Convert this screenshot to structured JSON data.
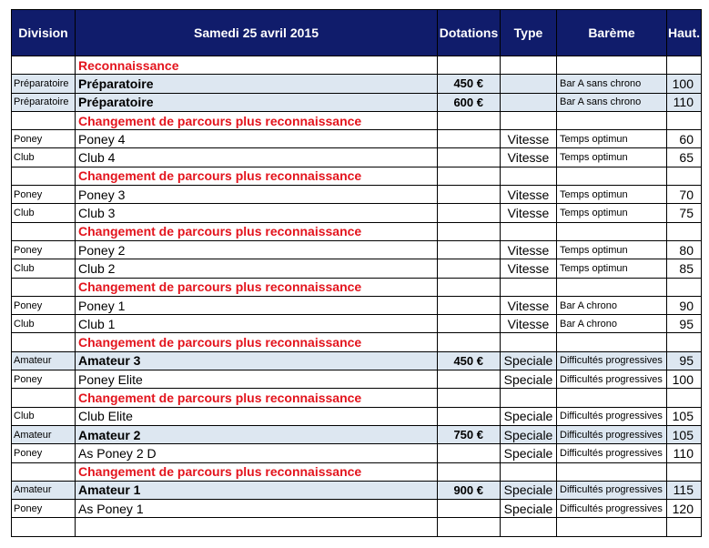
{
  "table": {
    "header": [
      "Division",
      "Samedi 25 avril 2015",
      "Dotations",
      "Type",
      "Barème",
      "Haut."
    ],
    "rows": [
      [
        null,
        "Reconnaissance",
        null,
        null,
        null,
        null
      ],
      [
        "Préparatoire",
        "Préparatoire",
        "450 €",
        null,
        "Bar A sans chrono",
        100
      ],
      [
        "Préparatoire",
        "Préparatoire",
        "600 €",
        null,
        "Bar A sans chrono",
        110
      ],
      [
        null,
        "Changement de parcours plus reconnaissance",
        null,
        null,
        null,
        null
      ],
      [
        "Poney",
        "Poney 4",
        null,
        "Vitesse",
        "Temps optimun",
        60
      ],
      [
        "Club",
        "Club 4",
        null,
        "Vitesse",
        "Temps optimun",
        65
      ],
      [
        null,
        "Changement de parcours plus reconnaissance",
        null,
        null,
        null,
        null
      ],
      [
        "Poney",
        "Poney 3",
        null,
        "Vitesse",
        "Temps optimun",
        70
      ],
      [
        "Club",
        "Club 3",
        null,
        "Vitesse",
        "Temps optimun",
        75
      ],
      [
        null,
        "Changement de parcours plus reconnaissance",
        null,
        null,
        null,
        null
      ],
      [
        "Poney",
        "Poney 2",
        null,
        "Vitesse",
        "Temps optimun",
        80
      ],
      [
        "Club",
        "Club 2",
        null,
        "Vitesse",
        "Temps optimun",
        85
      ],
      [
        null,
        "Changement de parcours plus reconnaissance",
        null,
        null,
        null,
        null
      ],
      [
        "Poney",
        "Poney 1",
        null,
        "Vitesse",
        "Bar A chrono",
        90
      ],
      [
        "Club",
        "Club 1",
        null,
        "Vitesse",
        "Bar A chrono",
        95
      ],
      [
        null,
        "Changement de parcours plus reconnaissance",
        null,
        null,
        null,
        null
      ],
      [
        "Amateur",
        "Amateur 3",
        "450 €",
        "Speciale",
        "Difficultés progressives",
        95
      ],
      [
        "Poney",
        "Poney Elite",
        null,
        "Speciale",
        "Difficultés progressives",
        100
      ],
      [
        null,
        "Changement de parcours plus reconnaissance",
        null,
        null,
        null,
        null
      ],
      [
        "Club",
        "Club Elite",
        null,
        "Speciale",
        "Difficultés progressives",
        105
      ],
      [
        "Amateur",
        "Amateur 2",
        "750 €",
        "Speciale",
        "Difficultés progressives",
        105
      ],
      [
        "Poney",
        "As Poney 2 D",
        null,
        "Speciale",
        "Difficultés progressives",
        110
      ],
      [
        null,
        "Changement de parcours plus reconnaissance",
        null,
        null,
        null,
        null
      ],
      [
        "Amateur",
        "Amateur 1",
        "900 €",
        "Speciale",
        "Difficultés progressives",
        115
      ],
      [
        "Poney",
        "As Poney 1",
        null,
        "Speciale",
        "Difficultés progressives",
        120
      ],
      [
        null,
        null,
        null,
        null,
        null,
        null
      ]
    ]
  }
}
